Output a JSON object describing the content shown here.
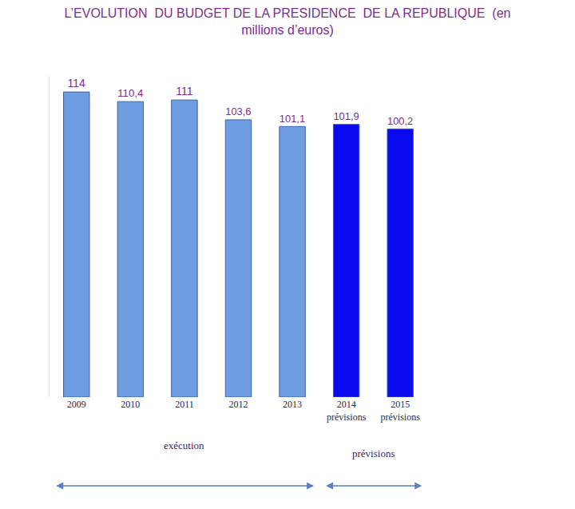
{
  "chart_data": {
    "type": "bar",
    "title": "L’EVOLUTION  DU BUDGET DE LA PRESIDENCE  DE LA REPUBLIQUE  (en\nmillions d’euros)",
    "categories": [
      "2009",
      "2010",
      "2011",
      "2012",
      "2013",
      "2014\nprévisions",
      "2015\nprévisions"
    ],
    "values": [
      114,
      110.4,
      111,
      103.6,
      101.1,
      101.9,
      100.2
    ],
    "value_labels": [
      "114",
      "110,4",
      "111",
      "103,6",
      "101,1",
      "101,9",
      "100,2"
    ],
    "colors": [
      "#6f9de2",
      "#6f9de2",
      "#6f9de2",
      "#6f9de2",
      "#6f9de2",
      "#0a0aee",
      "#0a0aee"
    ],
    "ylim": [
      0,
      120
    ],
    "yticks": [],
    "grid": false,
    "data_labels": true,
    "tick_labels": "x",
    "annotations": [
      {
        "text": "exécution",
        "span": [
          "2009",
          "2013"
        ]
      },
      {
        "text": "prévisions",
        "span": [
          "2014\nprévisions",
          "2015\nprévisions"
        ]
      }
    ]
  }
}
